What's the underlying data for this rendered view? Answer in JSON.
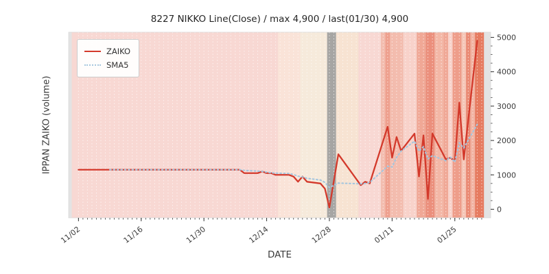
{
  "title": "8227 NIKKO Line(Close) / max 4,900 / last(01/30) 4,900",
  "legend": {
    "items": [
      {
        "label": "ZAIKO",
        "color": "#d3392b",
        "style": "solid"
      },
      {
        "label": "SMA5",
        "color": "#a5c6de",
        "style": "dotted"
      }
    ]
  },
  "chart_data": {
    "type": "line",
    "title": "8227 NIKKO Line(Close) / max 4,900 / last(01/30) 4,900",
    "xlabel": "DATE",
    "ylabel": "IPPAN ZAIKO (volume)",
    "x_ticks": [
      "11/02",
      "11/16",
      "11/30",
      "12/14",
      "12/28",
      "01/11",
      "01/25"
    ],
    "y_ticks": [
      0,
      1000,
      2000,
      3000,
      4000,
      5000
    ],
    "ylim": [
      -250,
      5150
    ],
    "xlim_days": [
      -2.2,
      92
    ],
    "grid": "vertical-daily-dotted-white",
    "legend_position": "upper-left",
    "outer_background": "#e3e3e3",
    "series": [
      {
        "name": "ZAIKO",
        "color": "#d3392b",
        "style": "solid",
        "points": [
          [
            "11/02",
            1150
          ],
          [
            "11/04",
            1150
          ],
          [
            "11/07",
            1150
          ],
          [
            "11/08",
            1150
          ],
          [
            "11/09",
            1150
          ],
          [
            "11/10",
            1150
          ],
          [
            "11/11",
            1150
          ],
          [
            "11/14",
            1150
          ],
          [
            "11/15",
            1150
          ],
          [
            "11/16",
            1150
          ],
          [
            "11/17",
            1150
          ],
          [
            "11/18",
            1150
          ],
          [
            "11/21",
            1150
          ],
          [
            "11/22",
            1150
          ],
          [
            "11/24",
            1150
          ],
          [
            "11/25",
            1150
          ],
          [
            "11/28",
            1150
          ],
          [
            "11/29",
            1150
          ],
          [
            "11/30",
            1150
          ],
          [
            "12/01",
            1150
          ],
          [
            "12/02",
            1150
          ],
          [
            "12/05",
            1150
          ],
          [
            "12/06",
            1150
          ],
          [
            "12/07",
            1150
          ],
          [
            "12/08",
            1150
          ],
          [
            "12/09",
            1050
          ],
          [
            "12/12",
            1050
          ],
          [
            "12/13",
            1100
          ],
          [
            "12/14",
            1050
          ],
          [
            "12/15",
            1050
          ],
          [
            "12/16",
            1000
          ],
          [
            "12/19",
            1000
          ],
          [
            "12/20",
            950
          ],
          [
            "12/21",
            800
          ],
          [
            "12/22",
            950
          ],
          [
            "12/23",
            800
          ],
          [
            "12/26",
            750
          ],
          [
            "12/27",
            600
          ],
          [
            "12/28",
            50
          ],
          [
            "12/30",
            1600
          ],
          [
            "01/04",
            700
          ],
          [
            "01/05",
            800
          ],
          [
            "01/06",
            750
          ],
          [
            "01/10",
            2400
          ],
          [
            "01/11",
            1500
          ],
          [
            "01/12",
            2100
          ],
          [
            "01/13",
            1700
          ],
          [
            "01/16",
            2200
          ],
          [
            "01/17",
            950
          ],
          [
            "01/18",
            2150
          ],
          [
            "01/19",
            300
          ],
          [
            "01/20",
            2200
          ],
          [
            "01/23",
            1450
          ],
          [
            "01/24",
            1500
          ],
          [
            "01/25",
            1400
          ],
          [
            "01/26",
            3100
          ],
          [
            "01/27",
            1450
          ],
          [
            "01/30",
            4900
          ]
        ]
      },
      {
        "name": "SMA5",
        "color": "#a5c6de",
        "style": "dotted",
        "derived": "moving-average-of-ZAIKO",
        "window": 5
      }
    ],
    "background_bands": [
      {
        "from": "11/01",
        "to": "12/16",
        "color": "#f8d8d3"
      },
      {
        "from": "12/17",
        "to": "12/21",
        "color": "#fae3d8"
      },
      {
        "from": "12/22",
        "to": "12/27",
        "color": "#f6eadb"
      },
      {
        "from": "12/28",
        "to": "12/29",
        "color": "#a6a5a3"
      },
      {
        "from": "12/30",
        "to": "01/03",
        "color": "#f7e3d2"
      },
      {
        "from": "01/04",
        "to": "01/08",
        "color": "#f8d8d3"
      },
      {
        "from": "01/09",
        "to": "01/13",
        "color": "#f3bcae"
      },
      {
        "from": "01/10",
        "to": "01/10",
        "color": "#eea08e"
      },
      {
        "from": "01/14",
        "to": "01/16",
        "color": "#f8d2ca"
      },
      {
        "from": "01/17",
        "to": "01/18",
        "color": "#f0a896"
      },
      {
        "from": "01/19",
        "to": "01/20",
        "color": "#eb8f7c"
      },
      {
        "from": "01/21",
        "to": "01/22",
        "color": "#f3b7a6"
      },
      {
        "from": "01/23",
        "to": "01/23",
        "color": "#f0a896"
      },
      {
        "from": "01/24",
        "to": "01/24",
        "color": "#f8d2ca"
      },
      {
        "from": "01/25",
        "to": "01/26",
        "color": "#ee9d8a"
      },
      {
        "from": "01/27",
        "to": "01/27",
        "color": "#f5c5b6"
      },
      {
        "from": "01/28",
        "to": "01/28",
        "color": "#ea8a74"
      },
      {
        "from": "01/29",
        "to": "01/29",
        "color": "#f2b3a2"
      },
      {
        "from": "01/30",
        "to": "01/31",
        "color": "#e67b60"
      }
    ]
  }
}
